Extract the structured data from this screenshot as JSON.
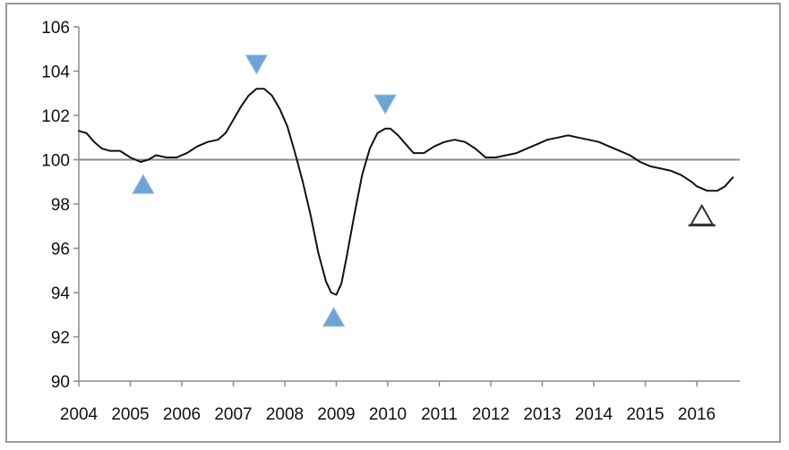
{
  "chart_data": {
    "type": "line",
    "title": "",
    "xlabel": "",
    "ylabel": "",
    "x_ticks": [
      "2004",
      "2005",
      "2006",
      "2007",
      "2008",
      "2009",
      "2010",
      "2011",
      "2012",
      "2013",
      "2014",
      "2015",
      "2016"
    ],
    "y_ticks": [
      "90",
      "92",
      "94",
      "96",
      "98",
      "100",
      "102",
      "104",
      "106"
    ],
    "xlim": [
      2004,
      2016.7
    ],
    "ylim": [
      90,
      106
    ],
    "reference_line": 100,
    "grid": false,
    "legend": "none",
    "series": [
      {
        "x": [
          2004.0,
          2004.15,
          2004.3,
          2004.45,
          2004.6,
          2004.8,
          2005.0,
          2005.2,
          2005.35,
          2005.5,
          2005.7,
          2005.9,
          2006.1,
          2006.3,
          2006.5,
          2006.7,
          2006.85,
          2007.0,
          2007.15,
          2007.3,
          2007.45,
          2007.6,
          2007.75,
          2007.9,
          2008.05,
          2008.2,
          2008.35,
          2008.5,
          2008.65,
          2008.8,
          2008.9,
          2009.0,
          2009.1,
          2009.2,
          2009.35,
          2009.5,
          2009.65,
          2009.8,
          2009.95,
          2010.05,
          2010.2,
          2010.35,
          2010.5,
          2010.7,
          2010.9,
          2011.1,
          2011.3,
          2011.5,
          2011.7,
          2011.9,
          2012.1,
          2012.3,
          2012.5,
          2012.7,
          2012.9,
          2013.1,
          2013.3,
          2013.5,
          2013.7,
          2013.9,
          2014.1,
          2014.3,
          2014.5,
          2014.7,
          2014.9,
          2015.1,
          2015.3,
          2015.5,
          2015.7,
          2015.9,
          2016.0,
          2016.2,
          2016.4,
          2016.55,
          2016.7
        ],
        "values": [
          101.3,
          101.2,
          100.8,
          100.5,
          100.4,
          100.4,
          100.1,
          99.9,
          100.0,
          100.2,
          100.1,
          100.1,
          100.3,
          100.6,
          100.8,
          100.9,
          101.2,
          101.8,
          102.4,
          102.9,
          103.2,
          103.2,
          102.9,
          102.3,
          101.5,
          100.3,
          99.0,
          97.5,
          95.8,
          94.5,
          94.0,
          93.9,
          94.4,
          95.6,
          97.5,
          99.3,
          100.5,
          101.2,
          101.4,
          101.4,
          101.1,
          100.7,
          100.3,
          100.3,
          100.6,
          100.8,
          100.9,
          100.8,
          100.5,
          100.1,
          100.1,
          100.2,
          100.3,
          100.5,
          100.7,
          100.9,
          101.0,
          101.1,
          101.0,
          100.9,
          100.8,
          100.6,
          100.4,
          100.2,
          99.9,
          99.7,
          99.6,
          99.5,
          99.3,
          99.0,
          98.8,
          98.6,
          98.6,
          98.8,
          99.2
        ]
      }
    ],
    "markers": [
      {
        "kind": "trough",
        "style": "filled",
        "x": 2005.25,
        "y": 98.9
      },
      {
        "kind": "peak",
        "style": "filled",
        "x": 2007.45,
        "y": 104.3
      },
      {
        "kind": "trough",
        "style": "filled",
        "x": 2008.95,
        "y": 92.9
      },
      {
        "kind": "peak",
        "style": "filled",
        "x": 2009.95,
        "y": 102.5
      },
      {
        "kind": "trough",
        "style": "outline",
        "x": 2016.1,
        "y": 97.5
      }
    ],
    "colors": {
      "line": "#111111",
      "reference": "#8a8a8a",
      "axis": "#8a8a8a",
      "marker_fill": "#6fa3d6",
      "marker_outline": "#333333"
    }
  }
}
